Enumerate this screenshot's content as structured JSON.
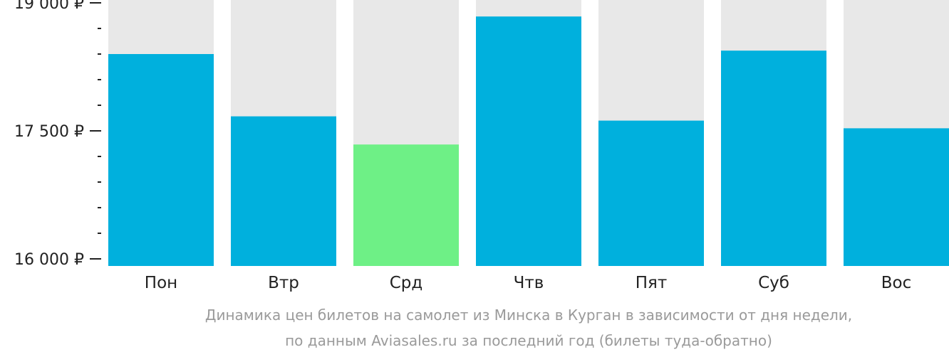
{
  "chart_data": {
    "type": "bar",
    "categories": [
      "Пон",
      "Втр",
      "Срд",
      "Чтв",
      "Пят",
      "Суб",
      "Вос"
    ],
    "values": [
      18400,
      17670,
      17340,
      18840,
      17620,
      18440,
      17530
    ],
    "ylim": [
      16000,
      19000
    ],
    "yticks": [
      {
        "value": 19000,
        "label": "19 000 ₽"
      },
      {
        "value": 17500,
        "label": "17 500 ₽"
      },
      {
        "value": 16000,
        "label": "16 000 ₽"
      }
    ],
    "minor_ticks": [
      18700,
      18400,
      18100,
      17800,
      17200,
      16900,
      16600,
      16300
    ],
    "caption_lines": [
      "Динамика цен билетов на самолет из Минска в Курган в зависимости от дня недели,",
      "по данным Aviasales.ru за последний год (билеты туда-обратно)"
    ],
    "colors": {
      "bar": "#00b0dd",
      "bar_min": "#6ef086",
      "bar_background": "#e8e8e8",
      "axis": "#222222",
      "caption": "#9a9a9a"
    },
    "highlight_min": true,
    "grid": false,
    "legend": "none"
  }
}
